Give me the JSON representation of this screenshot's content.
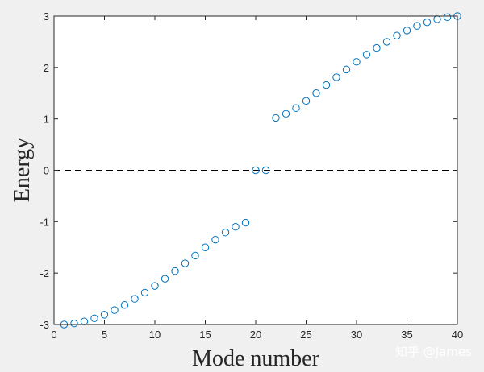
{
  "chart_data": {
    "type": "scatter",
    "xlabel": "Mode number",
    "ylabel": "Energy",
    "xlim": [
      0,
      40
    ],
    "ylim": [
      -3,
      3
    ],
    "xticks": [
      0,
      5,
      10,
      15,
      20,
      25,
      30,
      35,
      40
    ],
    "yticks": [
      -3,
      -2,
      -1,
      0,
      1,
      2,
      3
    ],
    "grid": false,
    "reference_line": {
      "y": 0,
      "style": "dashed",
      "color": "#000000"
    },
    "marker": {
      "shape": "open-circle",
      "color": "#0072bd"
    },
    "series": [
      {
        "x": [
          1,
          2,
          3,
          4,
          5,
          6,
          7,
          8,
          9,
          10,
          11,
          12,
          13,
          14,
          15,
          16,
          17,
          18,
          19,
          20,
          21,
          22,
          23,
          24,
          25,
          26,
          27,
          28,
          29,
          30,
          31,
          32,
          33,
          34,
          35,
          36,
          37,
          38,
          39,
          40
        ],
        "y": [
          -3.0,
          -2.98,
          -2.94,
          -2.88,
          -2.81,
          -2.72,
          -2.62,
          -2.5,
          -2.38,
          -2.25,
          -2.11,
          -1.96,
          -1.81,
          -1.66,
          -1.5,
          -1.35,
          -1.21,
          -1.1,
          -1.02,
          0.0,
          0.0,
          1.02,
          1.1,
          1.21,
          1.35,
          1.5,
          1.66,
          1.81,
          1.96,
          2.11,
          2.25,
          2.38,
          2.5,
          2.62,
          2.72,
          2.81,
          2.88,
          2.94,
          2.98,
          3.0
        ]
      }
    ]
  },
  "watermark": "知乎 @James"
}
